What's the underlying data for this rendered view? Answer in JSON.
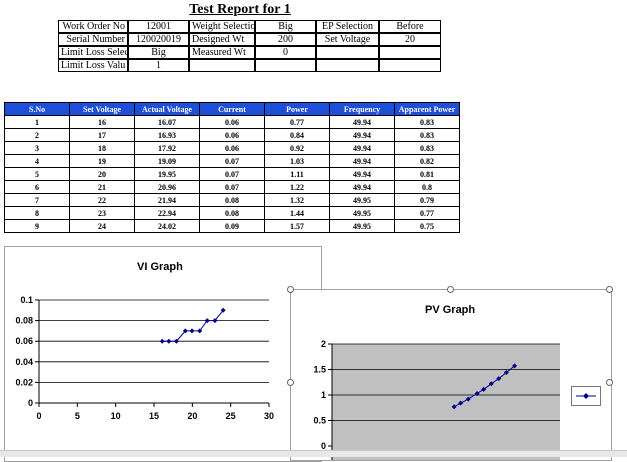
{
  "report": {
    "title": "Test Report for 1"
  },
  "header_rows": [
    {
      "label": "Work Order No",
      "value": "12001",
      "label2": "Weight Selection",
      "value2": "Big",
      "label3": "EP Selection",
      "value3": "Before"
    },
    {
      "label": "Serial Number",
      "value": "120020019",
      "label2": "Designed Wt",
      "value2": "200",
      "label3": "Set Voltage",
      "value3": "20"
    },
    {
      "label": "Limit Loss Select",
      "value": "Big",
      "label2": "Measured Wt",
      "value2": "0",
      "label3": "",
      "value3": ""
    },
    {
      "label": "Limit Loss Valu",
      "value": "1",
      "label2": "",
      "value2": "",
      "label3": "",
      "value3": ""
    }
  ],
  "table": {
    "columns": [
      "S.No",
      "Set Voltage",
      "Actual Voltage",
      "Current",
      "Power",
      "Frequency",
      "Apparent Power"
    ],
    "rows": [
      [
        "1",
        "16",
        "16.07",
        "0.06",
        "0.77",
        "49.94",
        "0.83"
      ],
      [
        "2",
        "17",
        "16.93",
        "0.06",
        "0.84",
        "49.94",
        "0.83"
      ],
      [
        "3",
        "18",
        "17.92",
        "0.06",
        "0.92",
        "49.94",
        "0.83"
      ],
      [
        "4",
        "19",
        "19.09",
        "0.07",
        "1.03",
        "49.94",
        "0.82"
      ],
      [
        "5",
        "20",
        "19.95",
        "0.07",
        "1.11",
        "49.94",
        "0.81"
      ],
      [
        "6",
        "21",
        "20.96",
        "0.07",
        "1.22",
        "49.94",
        "0.8"
      ],
      [
        "7",
        "22",
        "21.94",
        "0.08",
        "1.32",
        "49.95",
        "0.79"
      ],
      [
        "8",
        "23",
        "22.94",
        "0.08",
        "1.44",
        "49.95",
        "0.77"
      ],
      [
        "9",
        "24",
        "24.02",
        "0.09",
        "1.57",
        "49.95",
        "0.75"
      ]
    ]
  },
  "colors": {
    "header_blue": "#1f4ed8",
    "plot_bg": "#c0c0c0",
    "series": "#00008b"
  },
  "chart_data": [
    {
      "type": "scatter",
      "title": "VI Graph",
      "x": [
        16.07,
        16.93,
        17.92,
        19.09,
        19.95,
        20.96,
        21.94,
        22.94,
        24.02
      ],
      "y": [
        0.06,
        0.06,
        0.06,
        0.07,
        0.07,
        0.07,
        0.08,
        0.08,
        0.09
      ],
      "xlim": [
        0,
        30
      ],
      "ylim": [
        0,
        0.1
      ],
      "xticks": [
        "0",
        "5",
        "10",
        "15",
        "20",
        "25",
        "30"
      ],
      "yticks": [
        "0",
        "0.02",
        "0.04",
        "0.06",
        "0.08",
        "0.1"
      ],
      "grid": true
    },
    {
      "type": "scatter",
      "title": "PV Graph",
      "x": [
        16.07,
        16.93,
        17.92,
        19.09,
        19.95,
        20.96,
        21.94,
        22.94,
        24.02
      ],
      "y": [
        0.77,
        0.84,
        0.92,
        1.03,
        1.11,
        1.22,
        1.32,
        1.44,
        1.57
      ],
      "xlim": [
        0,
        30
      ],
      "ylim": [
        0,
        2
      ],
      "yticks": [
        "0",
        "0.5",
        "1",
        "1.5",
        "2"
      ],
      "grid": true,
      "legend": "right"
    }
  ]
}
